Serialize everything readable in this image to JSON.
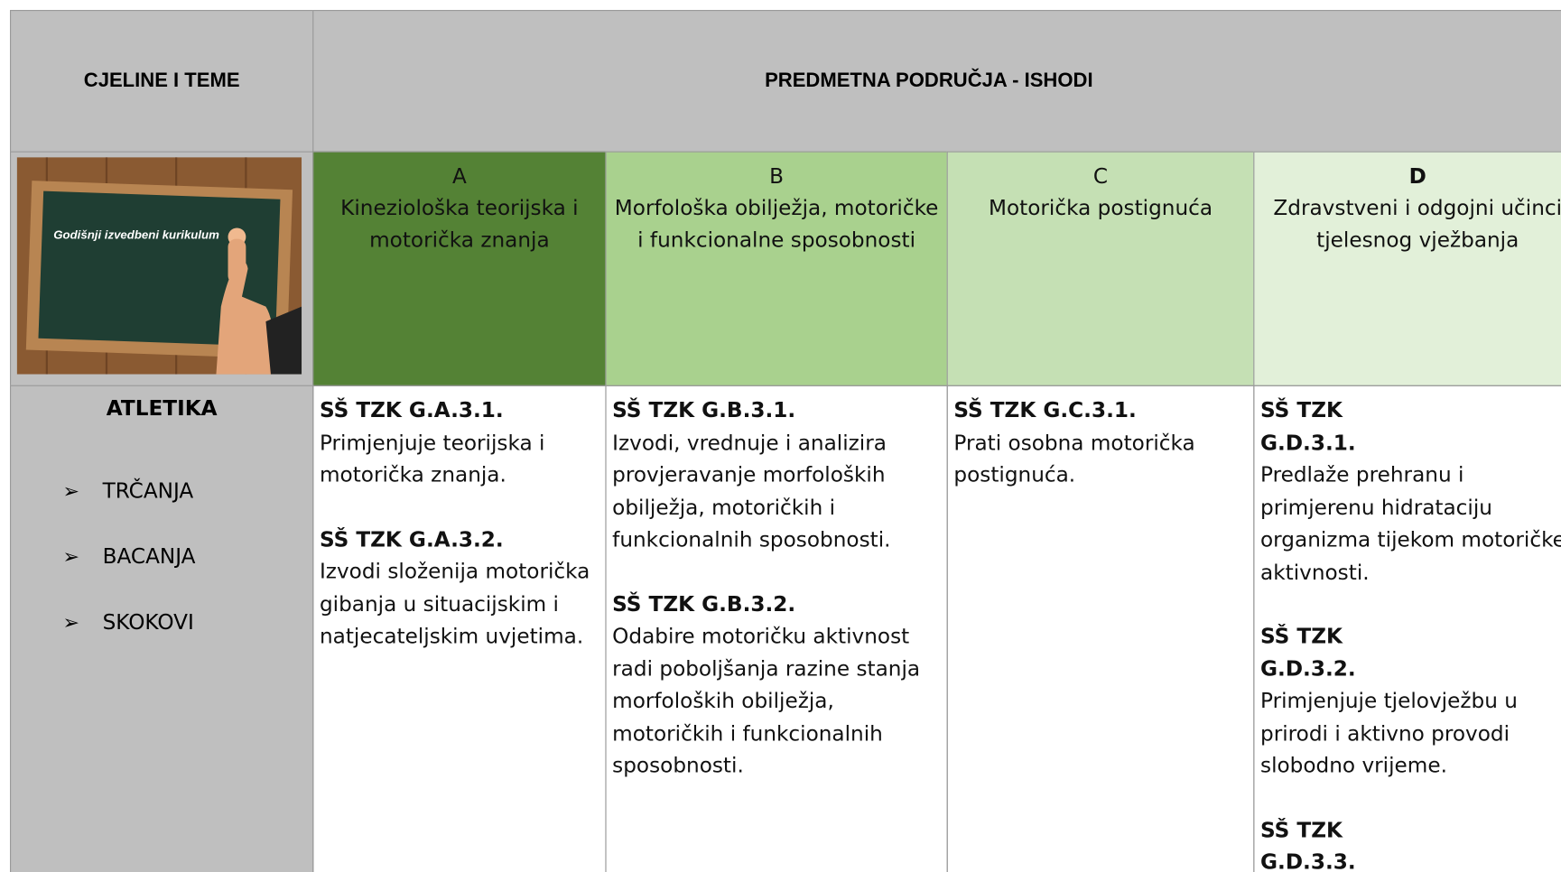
{
  "header": {
    "left": "CJELINE I TEME",
    "right": "PREDMETNA PODRUČJA - ISHODI"
  },
  "image": {
    "caption": "Godišnji izvedbeni kurikulum"
  },
  "columns": [
    {
      "letter": "A",
      "title": "Kineziološka teorijska i motorička znanja"
    },
    {
      "letter": "B",
      "title": "Morfološka obilježja, motoričke i funkcionalne sposobnosti"
    },
    {
      "letter": "C",
      "title": "Motorička postignuća"
    },
    {
      "letter": "D",
      "title": "Zdravstveni i odgojni učinci tjelesnog vježbanja"
    }
  ],
  "row": {
    "title": "ATLETIKA",
    "items": [
      "TRČANJA",
      "BACANJA",
      "SKOKOVI"
    ],
    "cells": [
      [
        {
          "code": "SŠ TZK G.A.3.1.",
          "text": "Primjenjuje teorijska i motorička znanja."
        },
        {
          "code": "SŠ TZK G.A.3.2.",
          "text": "Izvodi složenija motorička gibanja u situacijskim i natjecateljskim uvjetima."
        }
      ],
      [
        {
          "code": "SŠ TZK G.B.3.1.",
          "text": "Izvodi, vrednuje i analizira provjeravanje morfoloških obilježja, motoričkih i funkcionalnih sposobnosti."
        },
        {
          "code": "SŠ TZK G.B.3.2.",
          "text": "Odabire motoričku aktivnost radi poboljšanja razine stanja morfoloških obilježja, motoričkih i funkcionalnih sposobnosti."
        }
      ],
      [
        {
          "code": "SŠ TZK G.C.3.1.",
          "text": "Prati osobna motorička postignuća."
        }
      ],
      [
        {
          "code": "SŠ TZK G.D.3.1.",
          "text": "Predlaže prehranu i primjerenu hidrataciju organizma tijekom motoričke aktivnosti."
        },
        {
          "code": "SŠ TZK G.D.3.2.",
          "text": "Primjenjuje tjelovježbu u prirodi i aktivno provodi slobodno vrijeme."
        },
        {
          "code": "SŠ TZK G.D.3.3."
        }
      ]
    ]
  }
}
